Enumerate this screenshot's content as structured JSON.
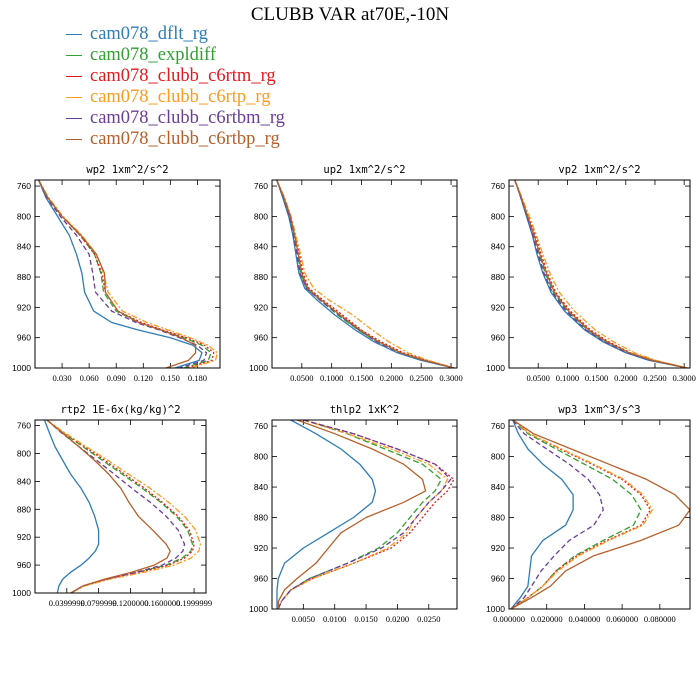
{
  "title": "CLUBB VAR at70E,-10N",
  "legend": [
    {
      "name": "cam078_dflt_rg",
      "color": "#2f7cb6",
      "dash": ""
    },
    {
      "name": "cam078_expldiff",
      "color": "#31a12f",
      "dash": "6,3"
    },
    {
      "name": "cam078_clubb_c6rtm_rg",
      "color": "#e31a1c",
      "dash": "2,2"
    },
    {
      "name": "cam078_clubb_c6rtp_rg",
      "color": "#ff9a1e",
      "dash": "6,2,2,2"
    },
    {
      "name": "cam078_clubb_c6rtbm_rg",
      "color": "#6a3d9a",
      "dash": "5,3"
    },
    {
      "name": "cam078_clubb_c6rtbp_rg",
      "color": "#b5602a",
      "dash": ""
    }
  ],
  "chart_data": [
    {
      "type": "line",
      "title": "wp2  1xm^2/s^2",
      "xlim": [
        0.0,
        0.205
      ],
      "ylim": [
        1000,
        752
      ],
      "xticks": [
        "0.030",
        "0.060",
        "0.090",
        "0.120",
        "0.150",
        "0.180"
      ],
      "xtick_values": [
        0.03,
        0.06,
        0.09,
        0.12,
        0.15,
        0.18
      ],
      "yticks": [
        760,
        800,
        840,
        880,
        920,
        960,
        1000
      ],
      "y": [
        752,
        775,
        800,
        825,
        850,
        875,
        900,
        925,
        940,
        950,
        960,
        970,
        980,
        990,
        1000
      ],
      "series": [
        {
          "values": [
            0.004,
            0.012,
            0.025,
            0.038,
            0.046,
            0.052,
            0.055,
            0.065,
            0.085,
            0.115,
            0.15,
            0.175,
            0.185,
            0.182,
            0.155
          ]
        },
        {
          "values": [
            0.004,
            0.014,
            0.03,
            0.05,
            0.066,
            0.073,
            0.076,
            0.09,
            0.115,
            0.14,
            0.165,
            0.185,
            0.195,
            0.192,
            0.165
          ]
        },
        {
          "values": [
            0.004,
            0.014,
            0.03,
            0.05,
            0.066,
            0.074,
            0.078,
            0.092,
            0.118,
            0.142,
            0.168,
            0.188,
            0.198,
            0.196,
            0.168
          ]
        },
        {
          "values": [
            0.004,
            0.015,
            0.031,
            0.052,
            0.068,
            0.076,
            0.081,
            0.097,
            0.124,
            0.148,
            0.172,
            0.192,
            0.202,
            0.2,
            0.172
          ]
        },
        {
          "values": [
            0.004,
            0.013,
            0.028,
            0.046,
            0.06,
            0.064,
            0.067,
            0.085,
            0.112,
            0.138,
            0.16,
            0.18,
            0.19,
            0.187,
            0.16
          ]
        },
        {
          "values": [
            0.004,
            0.014,
            0.03,
            0.051,
            0.068,
            0.077,
            0.078,
            0.092,
            0.115,
            0.14,
            0.162,
            0.178,
            0.178,
            0.17,
            0.145
          ]
        }
      ]
    },
    {
      "type": "line",
      "title": "up2  1xm^2/s^2",
      "xlim": [
        0.0,
        0.31
      ],
      "ylim": [
        1000,
        752
      ],
      "xticks": [
        "0.0500",
        "0.1000",
        "0.1500",
        "0.2000",
        "0.2500",
        "0.3000"
      ],
      "xtick_values": [
        0.05,
        0.1,
        0.15,
        0.2,
        0.25,
        0.3
      ],
      "yticks": [
        760,
        800,
        840,
        880,
        920,
        960,
        1000
      ],
      "y": [
        752,
        775,
        800,
        825,
        850,
        875,
        895,
        910,
        930,
        950,
        965,
        980,
        990,
        1000
      ],
      "series": [
        {
          "values": [
            0.008,
            0.018,
            0.028,
            0.035,
            0.04,
            0.045,
            0.055,
            0.075,
            0.105,
            0.14,
            0.17,
            0.21,
            0.25,
            0.305
          ]
        },
        {
          "values": [
            0.008,
            0.019,
            0.03,
            0.037,
            0.043,
            0.048,
            0.058,
            0.08,
            0.11,
            0.145,
            0.175,
            0.215,
            0.255,
            0.305
          ]
        },
        {
          "values": [
            0.008,
            0.02,
            0.031,
            0.039,
            0.046,
            0.052,
            0.062,
            0.085,
            0.118,
            0.15,
            0.182,
            0.22,
            0.26,
            0.305
          ]
        },
        {
          "values": [
            0.008,
            0.021,
            0.032,
            0.04,
            0.048,
            0.055,
            0.07,
            0.095,
            0.135,
            0.168,
            0.195,
            0.228,
            0.262,
            0.305
          ]
        },
        {
          "values": [
            0.008,
            0.019,
            0.029,
            0.036,
            0.042,
            0.047,
            0.058,
            0.08,
            0.112,
            0.146,
            0.175,
            0.215,
            0.255,
            0.305
          ]
        },
        {
          "values": [
            0.008,
            0.02,
            0.031,
            0.038,
            0.044,
            0.05,
            0.06,
            0.082,
            0.114,
            0.148,
            0.178,
            0.216,
            0.256,
            0.305
          ]
        }
      ]
    },
    {
      "type": "line",
      "title": "vp2  1xm^2/s^2",
      "xlim": [
        0.0,
        0.31
      ],
      "ylim": [
        1000,
        752
      ],
      "xticks": [
        "0.0500",
        "0.1000",
        "0.1500",
        "0.2000",
        "0.2500",
        "0.3000"
      ],
      "xtick_values": [
        0.05,
        0.1,
        0.15,
        0.2,
        0.25,
        0.3
      ],
      "yticks": [
        760,
        800,
        840,
        880,
        920,
        960,
        1000
      ],
      "y": [
        752,
        775,
        800,
        825,
        850,
        875,
        900,
        925,
        950,
        965,
        980,
        990,
        1000
      ],
      "series": [
        {
          "values": [
            0.01,
            0.02,
            0.03,
            0.04,
            0.048,
            0.058,
            0.072,
            0.095,
            0.13,
            0.16,
            0.2,
            0.24,
            0.305
          ]
        },
        {
          "values": [
            0.01,
            0.021,
            0.032,
            0.043,
            0.052,
            0.062,
            0.076,
            0.1,
            0.135,
            0.165,
            0.205,
            0.245,
            0.305
          ]
        },
        {
          "values": [
            0.01,
            0.022,
            0.034,
            0.045,
            0.055,
            0.066,
            0.08,
            0.105,
            0.14,
            0.17,
            0.208,
            0.248,
            0.305
          ]
        },
        {
          "values": [
            0.01,
            0.022,
            0.035,
            0.047,
            0.058,
            0.07,
            0.086,
            0.112,
            0.148,
            0.178,
            0.215,
            0.252,
            0.305
          ]
        },
        {
          "values": [
            0.01,
            0.02,
            0.031,
            0.041,
            0.05,
            0.06,
            0.074,
            0.098,
            0.132,
            0.163,
            0.203,
            0.243,
            0.305
          ]
        },
        {
          "values": [
            0.01,
            0.021,
            0.032,
            0.043,
            0.053,
            0.064,
            0.078,
            0.102,
            0.137,
            0.167,
            0.206,
            0.246,
            0.305
          ]
        }
      ]
    },
    {
      "type": "line",
      "title": "rtp2  1E-6x(kg/kg)^2",
      "xlim": [
        0.0,
        0.215
      ],
      "ylim": [
        1000,
        752
      ],
      "xticks": [
        "0.0399999",
        "0.0799999",
        "0.1200000",
        "0.1600000",
        "0.1999999"
      ],
      "xtick_values": [
        0.04,
        0.08,
        0.12,
        0.16,
        0.2
      ],
      "yticks": [
        760,
        800,
        840,
        880,
        920,
        960,
        1000
      ],
      "y": [
        752,
        770,
        790,
        810,
        830,
        850,
        870,
        890,
        910,
        930,
        940,
        950,
        960,
        970,
        980,
        990,
        1000
      ],
      "series": [
        {
          "values": [
            0.012,
            0.018,
            0.025,
            0.035,
            0.045,
            0.058,
            0.068,
            0.075,
            0.08,
            0.08,
            0.076,
            0.068,
            0.058,
            0.045,
            0.035,
            0.03,
            0.028
          ]
        },
        {
          "values": [
            0.015,
            0.035,
            0.06,
            0.085,
            0.11,
            0.135,
            0.158,
            0.178,
            0.192,
            0.198,
            0.196,
            0.185,
            0.165,
            0.13,
            0.09,
            0.06,
            0.045
          ]
        },
        {
          "values": [
            0.015,
            0.036,
            0.062,
            0.088,
            0.113,
            0.138,
            0.16,
            0.18,
            0.194,
            0.2,
            0.198,
            0.188,
            0.168,
            0.132,
            0.092,
            0.061,
            0.045
          ]
        },
        {
          "values": [
            0.015,
            0.037,
            0.064,
            0.092,
            0.118,
            0.145,
            0.168,
            0.188,
            0.202,
            0.208,
            0.206,
            0.196,
            0.175,
            0.138,
            0.095,
            0.062,
            0.045
          ]
        },
        {
          "values": [
            0.015,
            0.033,
            0.055,
            0.078,
            0.1,
            0.122,
            0.145,
            0.165,
            0.18,
            0.188,
            0.186,
            0.177,
            0.16,
            0.128,
            0.09,
            0.06,
            0.045
          ]
        },
        {
          "values": [
            0.015,
            0.034,
            0.055,
            0.075,
            0.093,
            0.108,
            0.118,
            0.13,
            0.148,
            0.165,
            0.17,
            0.166,
            0.15,
            0.122,
            0.088,
            0.06,
            0.045
          ]
        }
      ]
    },
    {
      "type": "line",
      "title": "thlp2  1xK^2",
      "xlim": [
        0.0,
        0.0295
      ],
      "ylim": [
        1000,
        752
      ],
      "xticks": [
        "0.0050",
        "0.0100",
        "0.0150",
        "0.0200",
        "0.0250"
      ],
      "xtick_values": [
        0.005,
        0.01,
        0.015,
        0.02,
        0.025
      ],
      "yticks": [
        760,
        800,
        840,
        880,
        920,
        960,
        1000
      ],
      "y": [
        752,
        770,
        790,
        810,
        830,
        845,
        860,
        880,
        900,
        920,
        940,
        960,
        975,
        990,
        1000
      ],
      "series": [
        {
          "values": [
            0.003,
            0.007,
            0.011,
            0.014,
            0.016,
            0.0165,
            0.016,
            0.013,
            0.009,
            0.005,
            0.002,
            0.001,
            0.0008,
            0.0008,
            0.0008
          ]
        },
        {
          "values": [
            0.005,
            0.012,
            0.018,
            0.024,
            0.027,
            0.026,
            0.024,
            0.022,
            0.02,
            0.017,
            0.012,
            0.006,
            0.003,
            0.0015,
            0.001
          ]
        },
        {
          "values": [
            0.005,
            0.013,
            0.02,
            0.026,
            0.029,
            0.028,
            0.026,
            0.024,
            0.022,
            0.019,
            0.013,
            0.0065,
            0.003,
            0.0015,
            0.001
          ]
        },
        {
          "values": [
            0.005,
            0.012,
            0.019,
            0.025,
            0.028,
            0.027,
            0.025,
            0.023,
            0.0215,
            0.0185,
            0.013,
            0.0065,
            0.003,
            0.0015,
            0.001
          ]
        },
        {
          "values": [
            0.005,
            0.013,
            0.02,
            0.026,
            0.0285,
            0.027,
            0.025,
            0.023,
            0.021,
            0.0175,
            0.012,
            0.006,
            0.003,
            0.0015,
            0.001
          ]
        },
        {
          "values": [
            0.004,
            0.01,
            0.016,
            0.021,
            0.024,
            0.0245,
            0.021,
            0.015,
            0.011,
            0.009,
            0.007,
            0.004,
            0.002,
            0.001,
            0.001
          ]
        }
      ]
    },
    {
      "type": "line",
      "title": "wp3  1xm^3/s^3",
      "xlim": [
        0.0,
        0.096
      ],
      "ylim": [
        1000,
        752
      ],
      "xticks": [
        "0.000000",
        "0.020000",
        "0.040000",
        "0.060000",
        "0.080000"
      ],
      "xtick_values": [
        0.0,
        0.02,
        0.04,
        0.06,
        0.08
      ],
      "yticks": [
        760,
        800,
        840,
        880,
        920,
        960,
        1000
      ],
      "y": [
        752,
        770,
        790,
        810,
        830,
        850,
        870,
        890,
        910,
        930,
        950,
        970,
        985,
        1000
      ],
      "series": [
        {
          "values": [
            0.002,
            0.005,
            0.01,
            0.018,
            0.028,
            0.034,
            0.034,
            0.03,
            0.018,
            0.012,
            0.011,
            0.01,
            0.006,
            0.001
          ]
        },
        {
          "values": [
            0.002,
            0.01,
            0.025,
            0.04,
            0.055,
            0.065,
            0.07,
            0.066,
            0.05,
            0.035,
            0.025,
            0.018,
            0.01,
            0.001
          ]
        },
        {
          "values": [
            0.002,
            0.011,
            0.027,
            0.044,
            0.06,
            0.07,
            0.075,
            0.07,
            0.052,
            0.036,
            0.025,
            0.018,
            0.01,
            0.001
          ]
        },
        {
          "values": [
            0.002,
            0.011,
            0.028,
            0.045,
            0.061,
            0.071,
            0.076,
            0.071,
            0.053,
            0.037,
            0.026,
            0.018,
            0.01,
            0.001
          ]
        },
        {
          "values": [
            0.002,
            0.008,
            0.02,
            0.032,
            0.042,
            0.048,
            0.05,
            0.045,
            0.032,
            0.024,
            0.017,
            0.012,
            0.008,
            0.001
          ]
        },
        {
          "values": [
            0.002,
            0.013,
            0.033,
            0.053,
            0.073,
            0.088,
            0.096,
            0.09,
            0.07,
            0.045,
            0.03,
            0.022,
            0.012,
            0.001
          ]
        }
      ]
    }
  ]
}
